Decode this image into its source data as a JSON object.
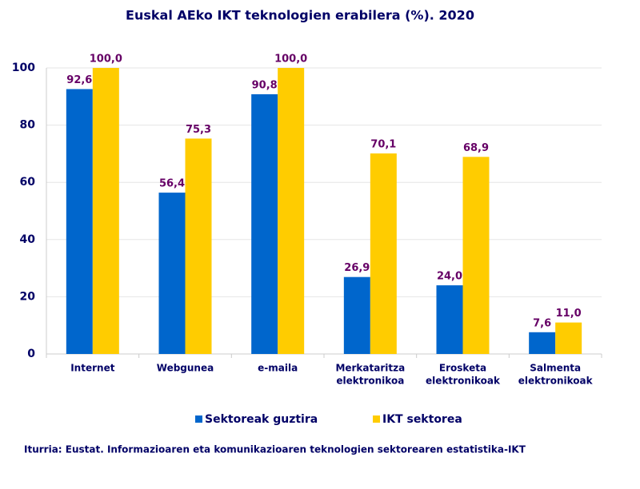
{
  "chart_data": {
    "type": "bar",
    "title": "Euskal AEko IKT teknologien erabilera (%). 2020",
    "categories": [
      [
        "Internet"
      ],
      [
        "Webgunea"
      ],
      [
        "e-maila"
      ],
      [
        "Merkataritza",
        "elektronikoa"
      ],
      [
        "Erosketa",
        "elektronikoak"
      ],
      [
        "Salmenta",
        "elektronikoak"
      ]
    ],
    "series": [
      {
        "name": "Sektoreak guztira",
        "color": "#0066cc",
        "values": [
          92.6,
          56.4,
          90.8,
          26.9,
          24.0,
          7.6
        ],
        "value_labels": [
          "92,6",
          "56,4",
          "90,8",
          "26,9",
          "24,0",
          "7,6"
        ]
      },
      {
        "name": "IKT sektorea",
        "color": "#ffcc00",
        "values": [
          100.0,
          75.3,
          100.0,
          70.1,
          68.9,
          11.0
        ],
        "value_labels": [
          "100,0",
          "75,3",
          "100,0",
          "70,1",
          "68,9",
          "11,0"
        ]
      }
    ],
    "ylim": [
      0,
      100
    ],
    "yticks": [
      0,
      20,
      40,
      60,
      80,
      100
    ],
    "grid": true,
    "source": "Iturria: Eustat. Informazioaren eta komunikazioaren teknologien sektorearen estatistika-IKT"
  }
}
